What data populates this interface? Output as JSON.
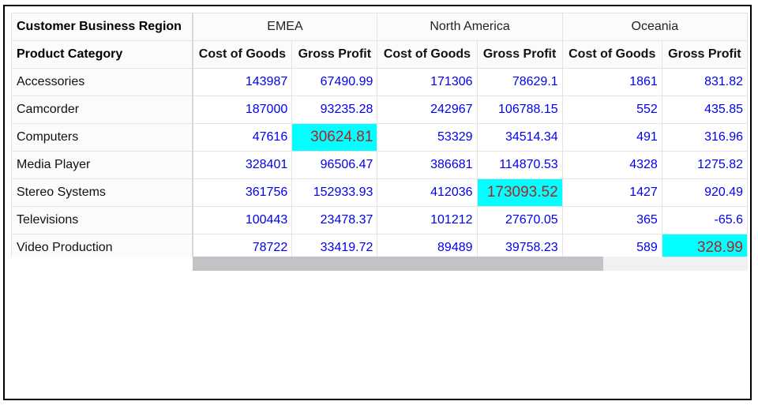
{
  "header": {
    "corner_top": "Customer Business Region",
    "corner_bottom": "Product Category",
    "regions": [
      "EMEA",
      "North America",
      "Oceania"
    ],
    "measures": [
      "Cost of Goods",
      "Gross Profit"
    ]
  },
  "rows": [
    {
      "label": "Accessories",
      "values": [
        "143987",
        "67490.99",
        "171306",
        "78629.1",
        "1861",
        "831.82"
      ]
    },
    {
      "label": "Camcorder",
      "values": [
        "187000",
        "93235.28",
        "242967",
        "106788.15",
        "552",
        "435.85"
      ]
    },
    {
      "label": "Computers",
      "values": [
        "47616",
        "30624.81",
        "53329",
        "34514.34",
        "491",
        "316.96"
      ]
    },
    {
      "label": "Media Player",
      "values": [
        "328401",
        "96506.47",
        "386681",
        "114870.53",
        "4328",
        "1275.82"
      ]
    },
    {
      "label": "Stereo Systems",
      "values": [
        "361756",
        "152933.93",
        "412036",
        "173093.52",
        "1427",
        "920.49"
      ]
    },
    {
      "label": "Televisions",
      "values": [
        "100443",
        "23478.37",
        "101212",
        "27670.05",
        "365",
        "-65.6"
      ]
    },
    {
      "label": "Video Production",
      "values": [
        "78722",
        "33419.72",
        "89489",
        "39758.23",
        "589",
        "328.99"
      ]
    }
  ],
  "highlighted_cells": [
    {
      "row": 2,
      "col": 1
    },
    {
      "row": 4,
      "col": 3
    },
    {
      "row": 6,
      "col": 5
    }
  ],
  "colors": {
    "highlight_bg": "#00ffff",
    "highlight_text": "#b22222",
    "value_text": "#0000ee",
    "scroll_thumb": "#c4c2c6"
  },
  "scrollbar": {
    "horizontal_thumb_fraction": 0.74,
    "position": 0
  }
}
